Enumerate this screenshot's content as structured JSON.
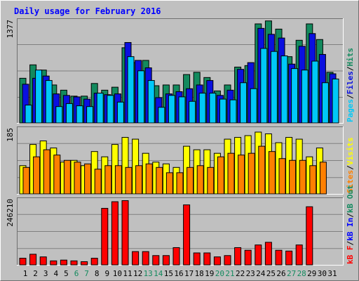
{
  "chart_data": [
    {
      "type": "bar",
      "title": "Daily usage for February 2016",
      "ymax_label": "1377",
      "ylim": [
        0,
        1377
      ],
      "categories": [
        "1",
        "2",
        "3",
        "4",
        "5",
        "6",
        "7",
        "8",
        "9",
        "10",
        "11",
        "12",
        "13",
        "14",
        "15",
        "16",
        "17",
        "18",
        "19",
        "20",
        "21",
        "22",
        "23",
        "24",
        "25",
        "26",
        "27",
        "28",
        "29",
        "30",
        "31"
      ],
      "weekend_days": [
        "6",
        "7",
        "13",
        "14",
        "20",
        "21",
        "27",
        "28"
      ],
      "legend": [
        "Pages",
        "Files",
        "Hits"
      ],
      "series": [
        {
          "name": "Hits",
          "color": "#138a5e",
          "values": [
            600,
            780,
            710,
            510,
            440,
            360,
            360,
            530,
            440,
            480,
            1010,
            810,
            840,
            500,
            510,
            510,
            650,
            680,
            610,
            430,
            510,
            750,
            770,
            1330,
            1370,
            1260,
            890,
            1110,
            1330,
            1120,
            680
          ]
        },
        {
          "name": "Files",
          "color": "#0a10e0",
          "values": [
            520,
            600,
            630,
            390,
            370,
            350,
            320,
            400,
            380,
            390,
            1080,
            840,
            740,
            340,
            390,
            420,
            460,
            510,
            570,
            370,
            440,
            720,
            810,
            1270,
            1190,
            1140,
            790,
            1030,
            1200,
            920,
            660
          ]
        },
        {
          "name": "Pages",
          "color": "#00c8f8",
          "values": [
            240,
            710,
            570,
            220,
            260,
            230,
            220,
            400,
            370,
            280,
            890,
            700,
            570,
            210,
            370,
            350,
            290,
            400,
            400,
            320,
            310,
            540,
            460,
            1000,
            960,
            900,
            730,
            710,
            830,
            540,
            590
          ]
        }
      ]
    },
    {
      "type": "bar",
      "ymax_label": "185",
      "ylim": [
        0,
        185
      ],
      "categories": [
        "1",
        "2",
        "3",
        "4",
        "5",
        "6",
        "7",
        "8",
        "9",
        "10",
        "11",
        "12",
        "13",
        "14",
        "15",
        "16",
        "17",
        "18",
        "19",
        "20",
        "21",
        "22",
        "23",
        "24",
        "25",
        "26",
        "27",
        "28",
        "29",
        "30",
        "31"
      ],
      "legend": [
        "Sites",
        "Visits"
      ],
      "series": [
        {
          "name": "Visits",
          "color": "#ffff00",
          "values": [
            80,
            140,
            150,
            130,
            90,
            95,
            80,
            120,
            105,
            140,
            160,
            155,
            115,
            90,
            85,
            75,
            135,
            125,
            125,
            115,
            155,
            160,
            165,
            175,
            170,
            145,
            160,
            155,
            105,
            130,
            0
          ]
        },
        {
          "name": "Sites",
          "color": "#ff8000",
          "values": [
            75,
            105,
            125,
            110,
            95,
            90,
            85,
            70,
            80,
            80,
            75,
            80,
            85,
            75,
            60,
            60,
            75,
            80,
            75,
            105,
            115,
            110,
            115,
            135,
            120,
            100,
            95,
            95,
            80,
            90,
            0
          ]
        }
      ]
    },
    {
      "type": "bar",
      "ymax_label": "246210",
      "ylim": [
        0,
        246210
      ],
      "categories": [
        "1",
        "2",
        "3",
        "4",
        "5",
        "6",
        "7",
        "8",
        "9",
        "10",
        "11",
        "12",
        "13",
        "14",
        "15",
        "16",
        "17",
        "18",
        "19",
        "20",
        "21",
        "22",
        "23",
        "24",
        "25",
        "26",
        "27",
        "28",
        "29",
        "30",
        "31"
      ],
      "legend": [
        "kB F",
        "kB In",
        "kB Out"
      ],
      "series": [
        {
          "name": "kB F",
          "color": "#ff0000",
          "values": [
            25000,
            40000,
            30000,
            15000,
            18000,
            15000,
            12000,
            25000,
            213000,
            238000,
            242000,
            50000,
            50000,
            35000,
            35000,
            65000,
            226000,
            45000,
            45000,
            30000,
            35000,
            65000,
            55000,
            75000,
            85000,
            55000,
            52000,
            75000,
            219000,
            0,
            0
          ]
        }
      ]
    }
  ]
}
